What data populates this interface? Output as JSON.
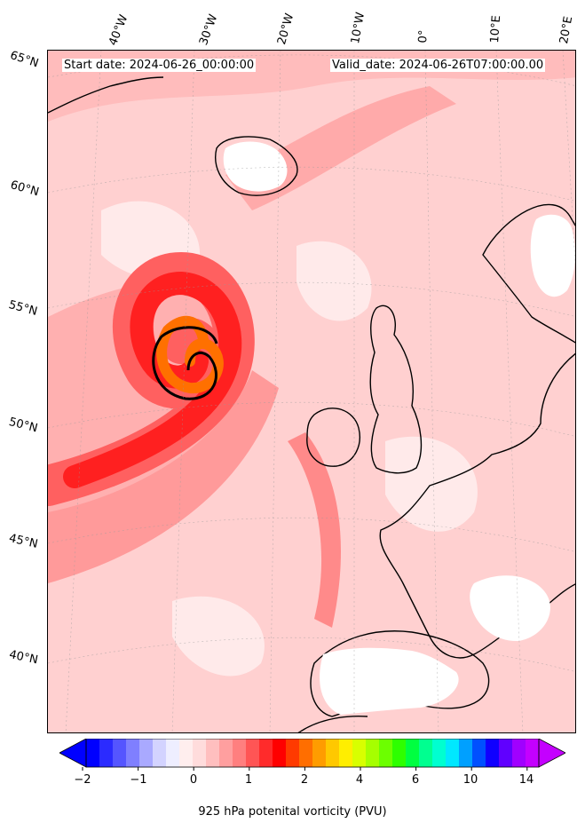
{
  "header": {
    "start_date": "Start date: 2024-06-26_00:00:00",
    "valid_date": "Valid_date: 2024-06-26T07:00:00.00"
  },
  "map": {
    "projection": "Lambert conformal",
    "region": "North Atlantic / Western Europe",
    "lon_labels": [
      "40°W",
      "30°W",
      "20°W",
      "10°W",
      "0°",
      "10°E",
      "20°E"
    ],
    "lat_labels": [
      "65°N",
      "60°N",
      "55°N",
      "50°N",
      "45°N",
      "40°N"
    ],
    "features": [
      "coastlines",
      "country borders",
      "graticule",
      "filled contours",
      "1.5 PVU contour line"
    ],
    "highlighted_feature": "cyclonic PV spiral west of Ireland"
  },
  "colorbar": {
    "label": "925 hPa potenital vorticity (PVU)",
    "tick_labels": [
      "−2",
      "−1",
      "0",
      "1",
      "2",
      "4",
      "6",
      "10",
      "14"
    ],
    "colors": [
      "#0000ff",
      "#2b2bff",
      "#5555ff",
      "#7f7fff",
      "#a9a9ff",
      "#d3d3ff",
      "#eeeeff",
      "#ffeeee",
      "#ffdcdc",
      "#ffbfbf",
      "#ff9f9f",
      "#ff7f7f",
      "#ff5555",
      "#ff2b2b",
      "#ff0000",
      "#ff3a00",
      "#ff6e00",
      "#ff9c00",
      "#ffc800",
      "#ffee00",
      "#d8ff00",
      "#a6ff00",
      "#6cff00",
      "#2eff00",
      "#00ff40",
      "#00ff90",
      "#00ffd0",
      "#00e8ff",
      "#00a0ff",
      "#0050ff",
      "#1000ff",
      "#6000ff",
      "#a000ff",
      "#c400ff"
    ],
    "extend": "both"
  }
}
